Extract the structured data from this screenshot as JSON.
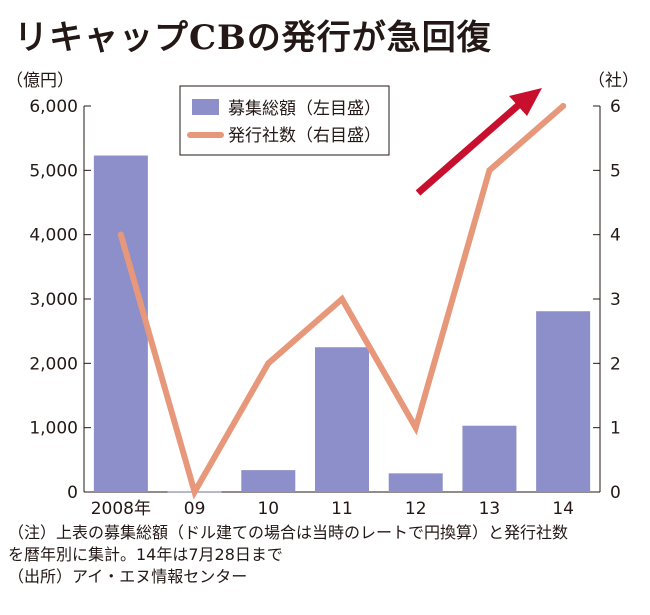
{
  "title": "リキャップCBの発行が急回復",
  "notes": [
    "（注）上表の募集総額（ドル建ての場合は当時のレートで円換算）と発行社数",
    "を暦年別に集計。14年は7月28日まで",
    "（出所）アイ・エヌ情報センター"
  ],
  "colors": {
    "bar": "#8c8fc9",
    "line": "#e8987a",
    "arrow": "#c8102e",
    "axis": "#231815"
  },
  "chart_data": {
    "type": "bar+line",
    "categories": [
      "2008年",
      "09",
      "10",
      "11",
      "12",
      "13",
      "14"
    ],
    "series": [
      {
        "name": "募集総額（左目盛）",
        "type": "bar",
        "axis": "left",
        "values": [
          5230,
          10,
          340,
          2250,
          290,
          1030,
          2810
        ]
      },
      {
        "name": "発行社数（右目盛）",
        "type": "line",
        "axis": "right",
        "values": [
          4,
          0,
          2,
          3,
          1,
          5,
          6
        ]
      }
    ],
    "left_axis": {
      "unit": "（億円）",
      "ylim": [
        0,
        6000
      ],
      "ticks": [
        "0",
        "1,000",
        "2,000",
        "3,000",
        "4,000",
        "5,000",
        "6,000"
      ]
    },
    "right_axis": {
      "unit": "（社）",
      "ylim": [
        0,
        6
      ],
      "ticks": [
        "0",
        "1",
        "2",
        "3",
        "4",
        "5",
        "6"
      ]
    },
    "legend_placement": "top-center",
    "grid": false,
    "annotation": "upward-arrow"
  }
}
